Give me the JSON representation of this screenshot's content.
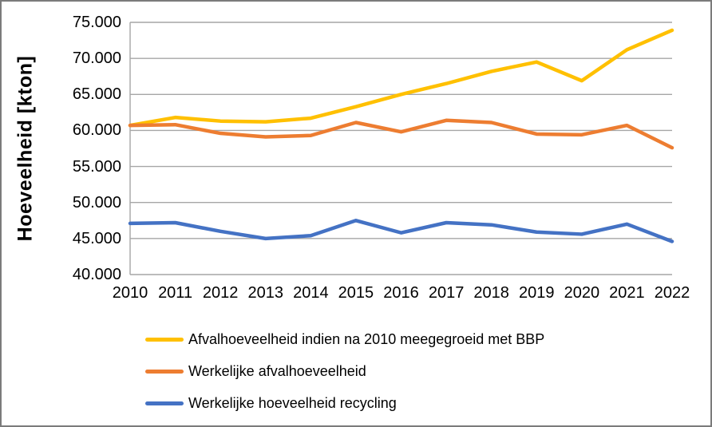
{
  "chart": {
    "y_axis_title": "Hoeveelheid [kton]"
  },
  "chart_data": {
    "type": "line",
    "title": "",
    "xlabel": "",
    "ylabel": "Hoeveelheid [kton]",
    "ylim": [
      40000,
      75000
    ],
    "y_tick_step": 5000,
    "y_tick_labels": [
      "40.000",
      "45.000",
      "50.000",
      "55.000",
      "60.000",
      "65.000",
      "70.000",
      "75.000"
    ],
    "grid": "horizontal",
    "gridline_color": "#a6a6a6",
    "legend_position": "bottom-left",
    "categories": [
      "2010",
      "2011",
      "2012",
      "2013",
      "2014",
      "2015",
      "2016",
      "2017",
      "2018",
      "2019",
      "2020",
      "2021",
      "2022"
    ],
    "series": [
      {
        "name": "Afvalhoeveelheid indien na 2010 meegegroeid met BBP",
        "color": "#FFC000",
        "values": [
          60700,
          61800,
          61300,
          61200,
          61700,
          63300,
          65000,
          66500,
          68200,
          69500,
          66900,
          71200,
          73900
        ]
      },
      {
        "name": "Werkelijke afvalhoeveelheid",
        "color": "#ED7D31",
        "values": [
          60700,
          60800,
          59600,
          59100,
          59300,
          61100,
          59800,
          61400,
          61100,
          59500,
          59400,
          60700,
          57600
        ]
      },
      {
        "name": "Werkelijke hoeveelheid recycling",
        "color": "#4472C4",
        "values": [
          47100,
          47200,
          46000,
          45000,
          45400,
          47500,
          45800,
          47200,
          46900,
          45900,
          45600,
          47000,
          44600
        ]
      }
    ]
  }
}
